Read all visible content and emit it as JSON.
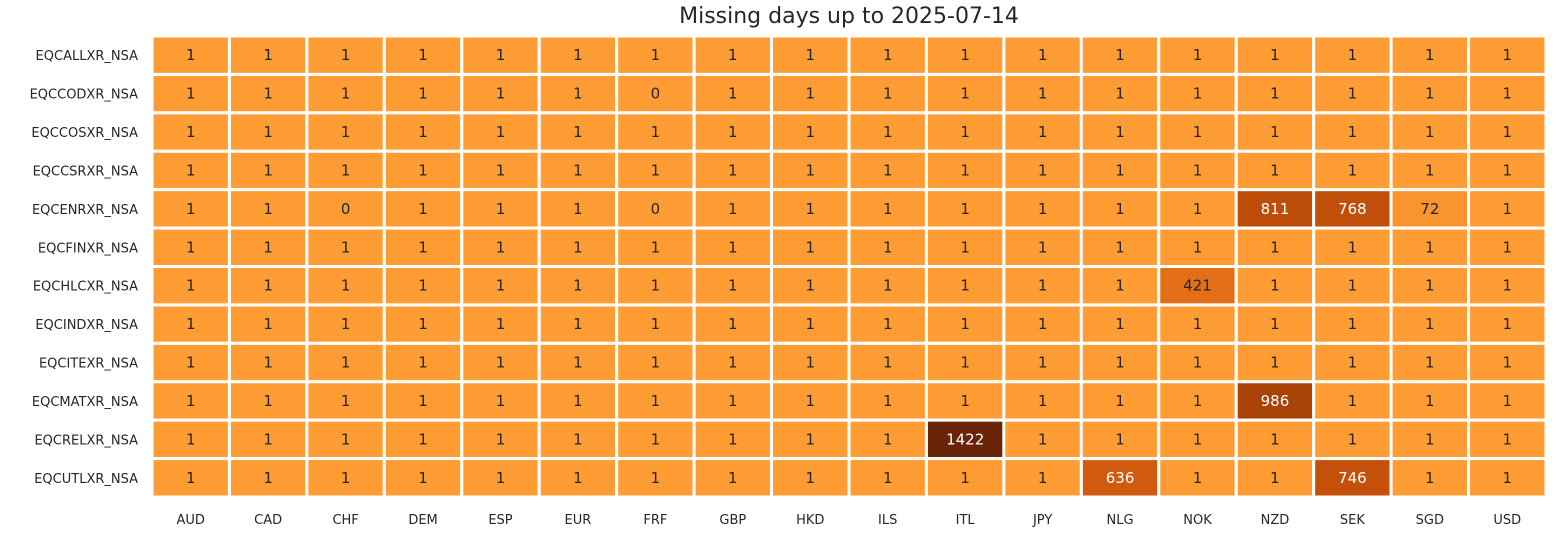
{
  "chart_data": {
    "type": "heatmap",
    "title": "Missing days up to 2025-07-14",
    "xlabel": "",
    "ylabel": "",
    "x_categories": [
      "AUD",
      "CAD",
      "CHF",
      "DEM",
      "ESP",
      "EUR",
      "FRF",
      "GBP",
      "HKD",
      "ILS",
      "ITL",
      "JPY",
      "NLG",
      "NOK",
      "NZD",
      "SEK",
      "SGD",
      "USD"
    ],
    "y_categories": [
      "EQCALLXR_NSA",
      "EQCCODXR_NSA",
      "EQCCOSXR_NSA",
      "EQCCSRXR_NSA",
      "EQCENRXR_NSA",
      "EQCFINXR_NSA",
      "EQCHLCXR_NSA",
      "EQCINDXR_NSA",
      "EQCITEXR_NSA",
      "EQCMATXR_NSA",
      "EQCRELXR_NSA",
      "EQCUTLXR_NSA"
    ],
    "values": [
      [
        1,
        1,
        1,
        1,
        1,
        1,
        1,
        1,
        1,
        1,
        1,
        1,
        1,
        1,
        1,
        1,
        1,
        1
      ],
      [
        1,
        1,
        1,
        1,
        1,
        1,
        0,
        1,
        1,
        1,
        1,
        1,
        1,
        1,
        1,
        1,
        1,
        1
      ],
      [
        1,
        1,
        1,
        1,
        1,
        1,
        1,
        1,
        1,
        1,
        1,
        1,
        1,
        1,
        1,
        1,
        1,
        1
      ],
      [
        1,
        1,
        1,
        1,
        1,
        1,
        1,
        1,
        1,
        1,
        1,
        1,
        1,
        1,
        1,
        1,
        1,
        1
      ],
      [
        1,
        1,
        0,
        1,
        1,
        1,
        0,
        1,
        1,
        1,
        1,
        1,
        1,
        1,
        811,
        768,
        72,
        1
      ],
      [
        1,
        1,
        1,
        1,
        1,
        1,
        1,
        1,
        1,
        1,
        1,
        1,
        1,
        1,
        1,
        1,
        1,
        1
      ],
      [
        1,
        1,
        1,
        1,
        1,
        1,
        1,
        1,
        1,
        1,
        1,
        1,
        1,
        421,
        1,
        1,
        1,
        1
      ],
      [
        1,
        1,
        1,
        1,
        1,
        1,
        1,
        1,
        1,
        1,
        1,
        1,
        1,
        1,
        1,
        1,
        1,
        1
      ],
      [
        1,
        1,
        1,
        1,
        1,
        1,
        1,
        1,
        1,
        1,
        1,
        1,
        1,
        1,
        1,
        1,
        1,
        1
      ],
      [
        1,
        1,
        1,
        1,
        1,
        1,
        1,
        1,
        1,
        1,
        1,
        1,
        1,
        1,
        986,
        1,
        1,
        1
      ],
      [
        1,
        1,
        1,
        1,
        1,
        1,
        1,
        1,
        1,
        1,
        1422,
        1,
        1,
        1,
        1,
        1,
        1,
        1
      ],
      [
        1,
        1,
        1,
        1,
        1,
        1,
        1,
        1,
        1,
        1,
        1,
        1,
        636,
        1,
        1,
        746,
        1,
        1
      ]
    ],
    "colorscale": [
      "#ff9c33",
      "#e8761a",
      "#c9520a",
      "#a03d06",
      "#6a2508"
    ],
    "grid": false,
    "legend": "none"
  }
}
